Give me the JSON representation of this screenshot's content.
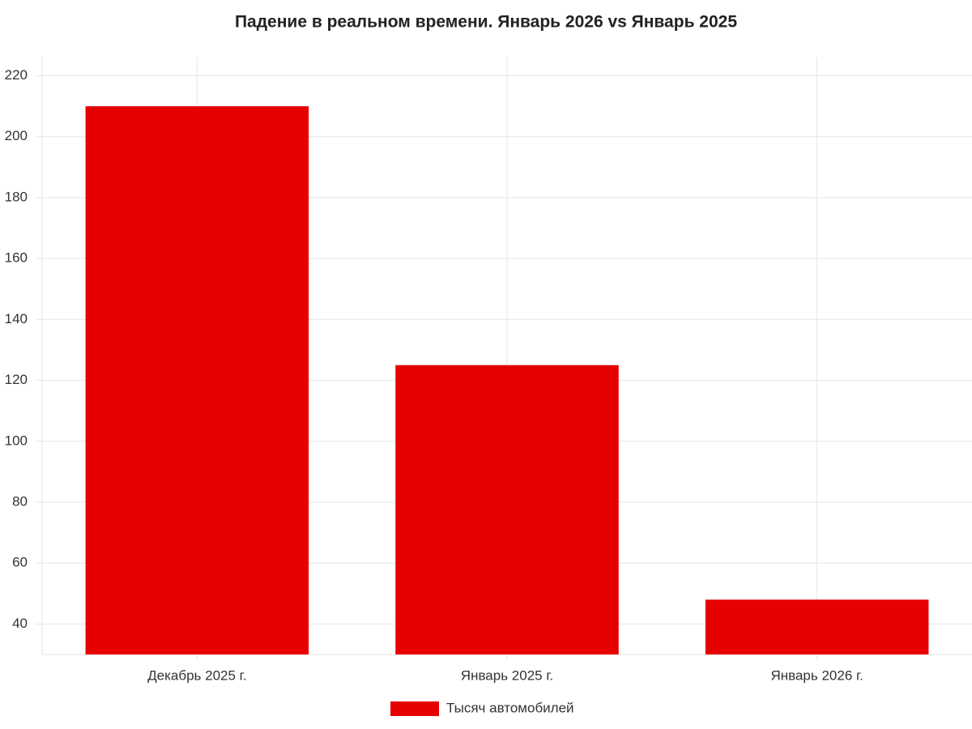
{
  "chart_data": {
    "type": "bar",
    "title": "Падение в реальном времени. Январь 2026 vs Январь 2025",
    "categories": [
      "Декабрь 2025 г.",
      "Январь 2025 г.",
      "Январь 2026 г."
    ],
    "series": [
      {
        "name": "Тысяч автомобилей",
        "color": "#e60000",
        "values": [
          210,
          125,
          48
        ]
      }
    ],
    "ylim": [
      30,
      226
    ],
    "yticks": [
      40,
      60,
      80,
      100,
      120,
      140,
      160,
      180,
      200,
      220
    ],
    "grid": true
  }
}
